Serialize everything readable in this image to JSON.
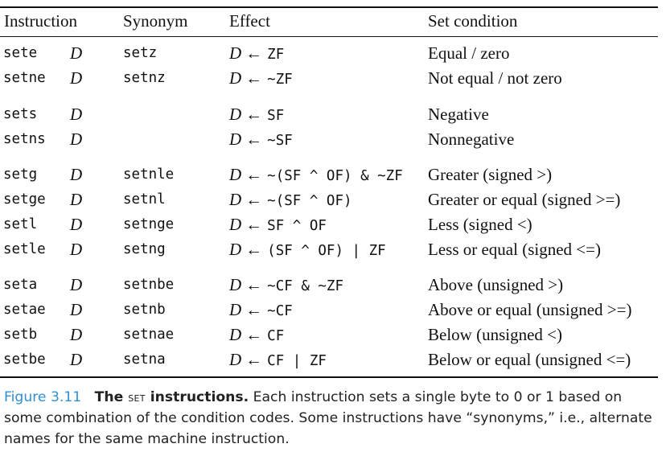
{
  "table": {
    "headers": {
      "instruction": "Instruction",
      "synonym": "Synonym",
      "effect": "Effect",
      "set_condition": "Set condition"
    },
    "groups": [
      [
        {
          "instr": "sete",
          "operand": "D",
          "synonym": "setz",
          "effect": "ZF",
          "condition": "Equal / zero"
        },
        {
          "instr": "setne",
          "operand": "D",
          "synonym": "setnz",
          "effect": "~ZF",
          "condition": "Not equal / not zero"
        }
      ],
      [
        {
          "instr": "sets",
          "operand": "D",
          "synonym": "",
          "effect": "SF",
          "condition": "Negative"
        },
        {
          "instr": "setns",
          "operand": "D",
          "synonym": "",
          "effect": "~SF",
          "condition": "Nonnegative"
        }
      ],
      [
        {
          "instr": "setg",
          "operand": "D",
          "synonym": "setnle",
          "effect": "~(SF ^ OF) & ~ZF",
          "condition": "Greater (signed >)"
        },
        {
          "instr": "setge",
          "operand": "D",
          "synonym": "setnl",
          "effect": "~(SF ^ OF)",
          "condition": "Greater or equal (signed >=)"
        },
        {
          "instr": "setl",
          "operand": "D",
          "synonym": "setnge",
          "effect": "SF ^ OF",
          "condition": "Less (signed <)"
        },
        {
          "instr": "setle",
          "operand": "D",
          "synonym": "setng",
          "effect": "(SF ^ OF) | ZF",
          "condition": "Less or equal (signed <=)"
        }
      ],
      [
        {
          "instr": "seta",
          "operand": "D",
          "synonym": "setnbe",
          "effect": "~CF & ~ZF",
          "condition": "Above (unsigned >)"
        },
        {
          "instr": "setae",
          "operand": "D",
          "synonym": "setnb",
          "effect": "~CF",
          "condition": "Above or equal (unsigned >=)"
        },
        {
          "instr": "setb",
          "operand": "D",
          "synonym": "setnae",
          "effect": "CF",
          "condition": "Below (unsigned <)"
        },
        {
          "instr": "setbe",
          "operand": "D",
          "synonym": "setna",
          "effect": "CF | ZF",
          "condition": "Below or equal (unsigned <=)"
        }
      ]
    ],
    "effect_arrow": "←"
  },
  "caption": {
    "label": "Figure 3.11",
    "title_prefix": "The",
    "title_sc": "set",
    "title_suffix": "instructions.",
    "body": "Each instruction sets a single byte to 0 or 1 based on some combination of the condition codes. Some instructions have “synonyms,” i.e., alternate names for the same machine instruction.",
    "label_color": "#2f8fd3"
  }
}
